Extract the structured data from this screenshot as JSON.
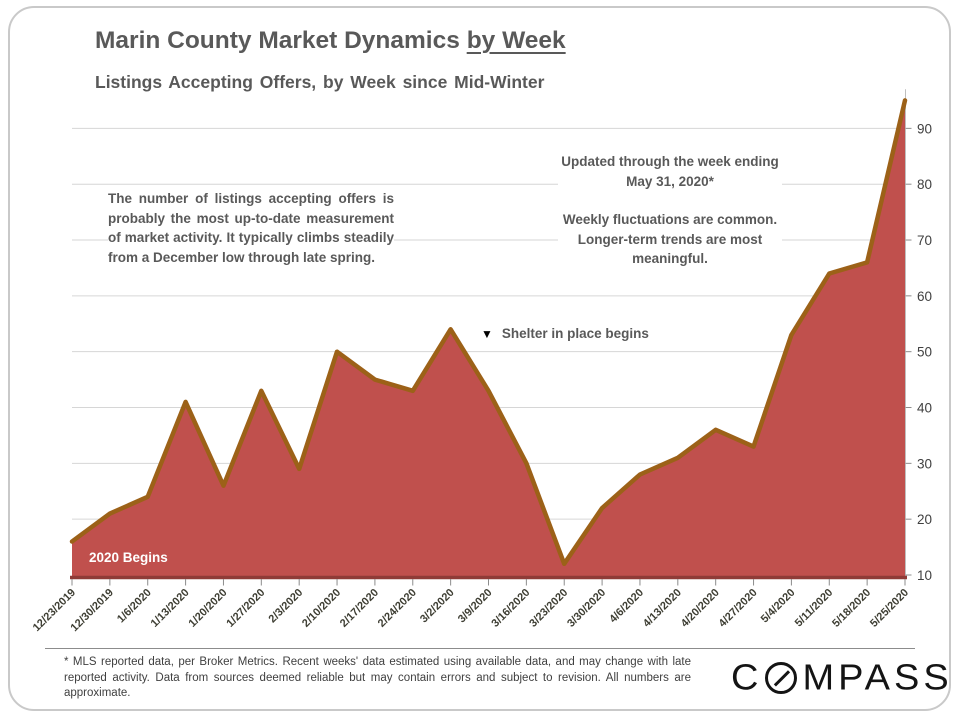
{
  "title": {
    "prefix": "Marin County Market Dynamics ",
    "underlined": "by Week"
  },
  "subtitle": "Listings Accepting Offers, by Week since Mid-Winter",
  "annotations": {
    "left_note": "The number of listings accepting offers is probably the most up-to-date measurement of market activity. It typically climbs steadily from a December low through late spring.",
    "updated_note": "Updated through the week ending May 31, 2020*",
    "fluctuations_note": "Weekly fluctuations are common. Longer-term trends are most meaningful.",
    "shelter_marker": "▼",
    "shelter_label": "Shelter in place begins",
    "year_begins_label": "2020 Begins"
  },
  "chart_data": {
    "type": "area",
    "title": "Listings Accepting Offers, by Week since Mid-Winter",
    "categories": [
      "12/23/2019",
      "12/30/2019",
      "1/6/2020",
      "1/13/2020",
      "1/20/2020",
      "1/27/2020",
      "2/3/2020",
      "2/10/2020",
      "2/17/2020",
      "2/24/2020",
      "3/2/2020",
      "3/9/2020",
      "3/16/2020",
      "3/23/2020",
      "3/30/2020",
      "4/6/2020",
      "4/13/2020",
      "4/20/2020",
      "4/27/2020",
      "5/4/2020",
      "5/11/2020",
      "5/18/2020",
      "5/25/2020"
    ],
    "values": [
      16,
      21,
      24,
      41,
      26,
      43,
      29,
      50,
      45,
      43,
      54,
      43,
      30,
      12,
      22,
      28,
      31,
      36,
      33,
      53,
      64,
      66,
      95
    ],
    "y_ticks": [
      10,
      20,
      30,
      40,
      50,
      60,
      70,
      80,
      90
    ],
    "ylim": [
      10,
      97
    ],
    "grid": true,
    "legend": "none",
    "y_axis_side": "right",
    "colors": {
      "area_fill": "#C0504D",
      "series_line": "#9C6118",
      "x_axis_line": "#8F3B37",
      "gridline": "#D6D6D6",
      "y_axis_line": "#BFBFBF",
      "tick": "#8C8C8C",
      "axis_label": "#404040",
      "date_label": "#3E3E33"
    }
  },
  "footer": {
    "disclaimer": "* MLS reported data, per Broker Metrics. Recent weeks' data estimated using available data, and may change with late reported activity. Data from sources deemed reliable but may contain errors and subject to revision. All numbers are approximate.",
    "logo_part1": "C",
    "logo_part2": "MPASS"
  }
}
